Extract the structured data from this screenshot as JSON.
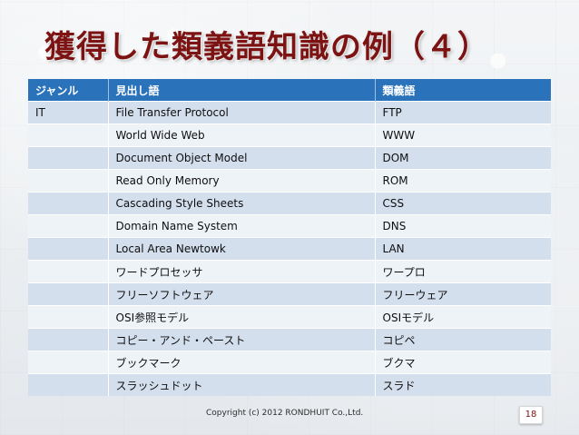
{
  "slide": {
    "title": "獲得した類義語知識の例（４）",
    "copyright": "Copyright (c) 2012 RONDHUIT Co.,Ltd.",
    "page_number": "18"
  },
  "table": {
    "headers": [
      "ジャンル",
      "見出し語",
      "類義語"
    ],
    "rows": [
      [
        "IT",
        "File Transfer Protocol",
        "FTP"
      ],
      [
        "",
        "World Wide Web",
        "WWW"
      ],
      [
        "",
        "Document Object Model",
        "DOM"
      ],
      [
        "",
        "Read Only Memory",
        "ROM"
      ],
      [
        "",
        "Cascading Style Sheets",
        "CSS"
      ],
      [
        "",
        "Domain Name System",
        "DNS"
      ],
      [
        "",
        "Local Area Newtowk",
        "LAN"
      ],
      [
        "",
        "ワードプロセッサ",
        "ワープロ"
      ],
      [
        "",
        "フリーソフトウェア",
        "フリーウェア"
      ],
      [
        "",
        "OSI参照モデル",
        "OSIモデル"
      ],
      [
        "",
        "コピー・アンド・ペースト",
        "コピペ"
      ],
      [
        "",
        "ブックマーク",
        "ブクマ"
      ],
      [
        "",
        "スラッシュドット",
        "スラド"
      ]
    ]
  }
}
